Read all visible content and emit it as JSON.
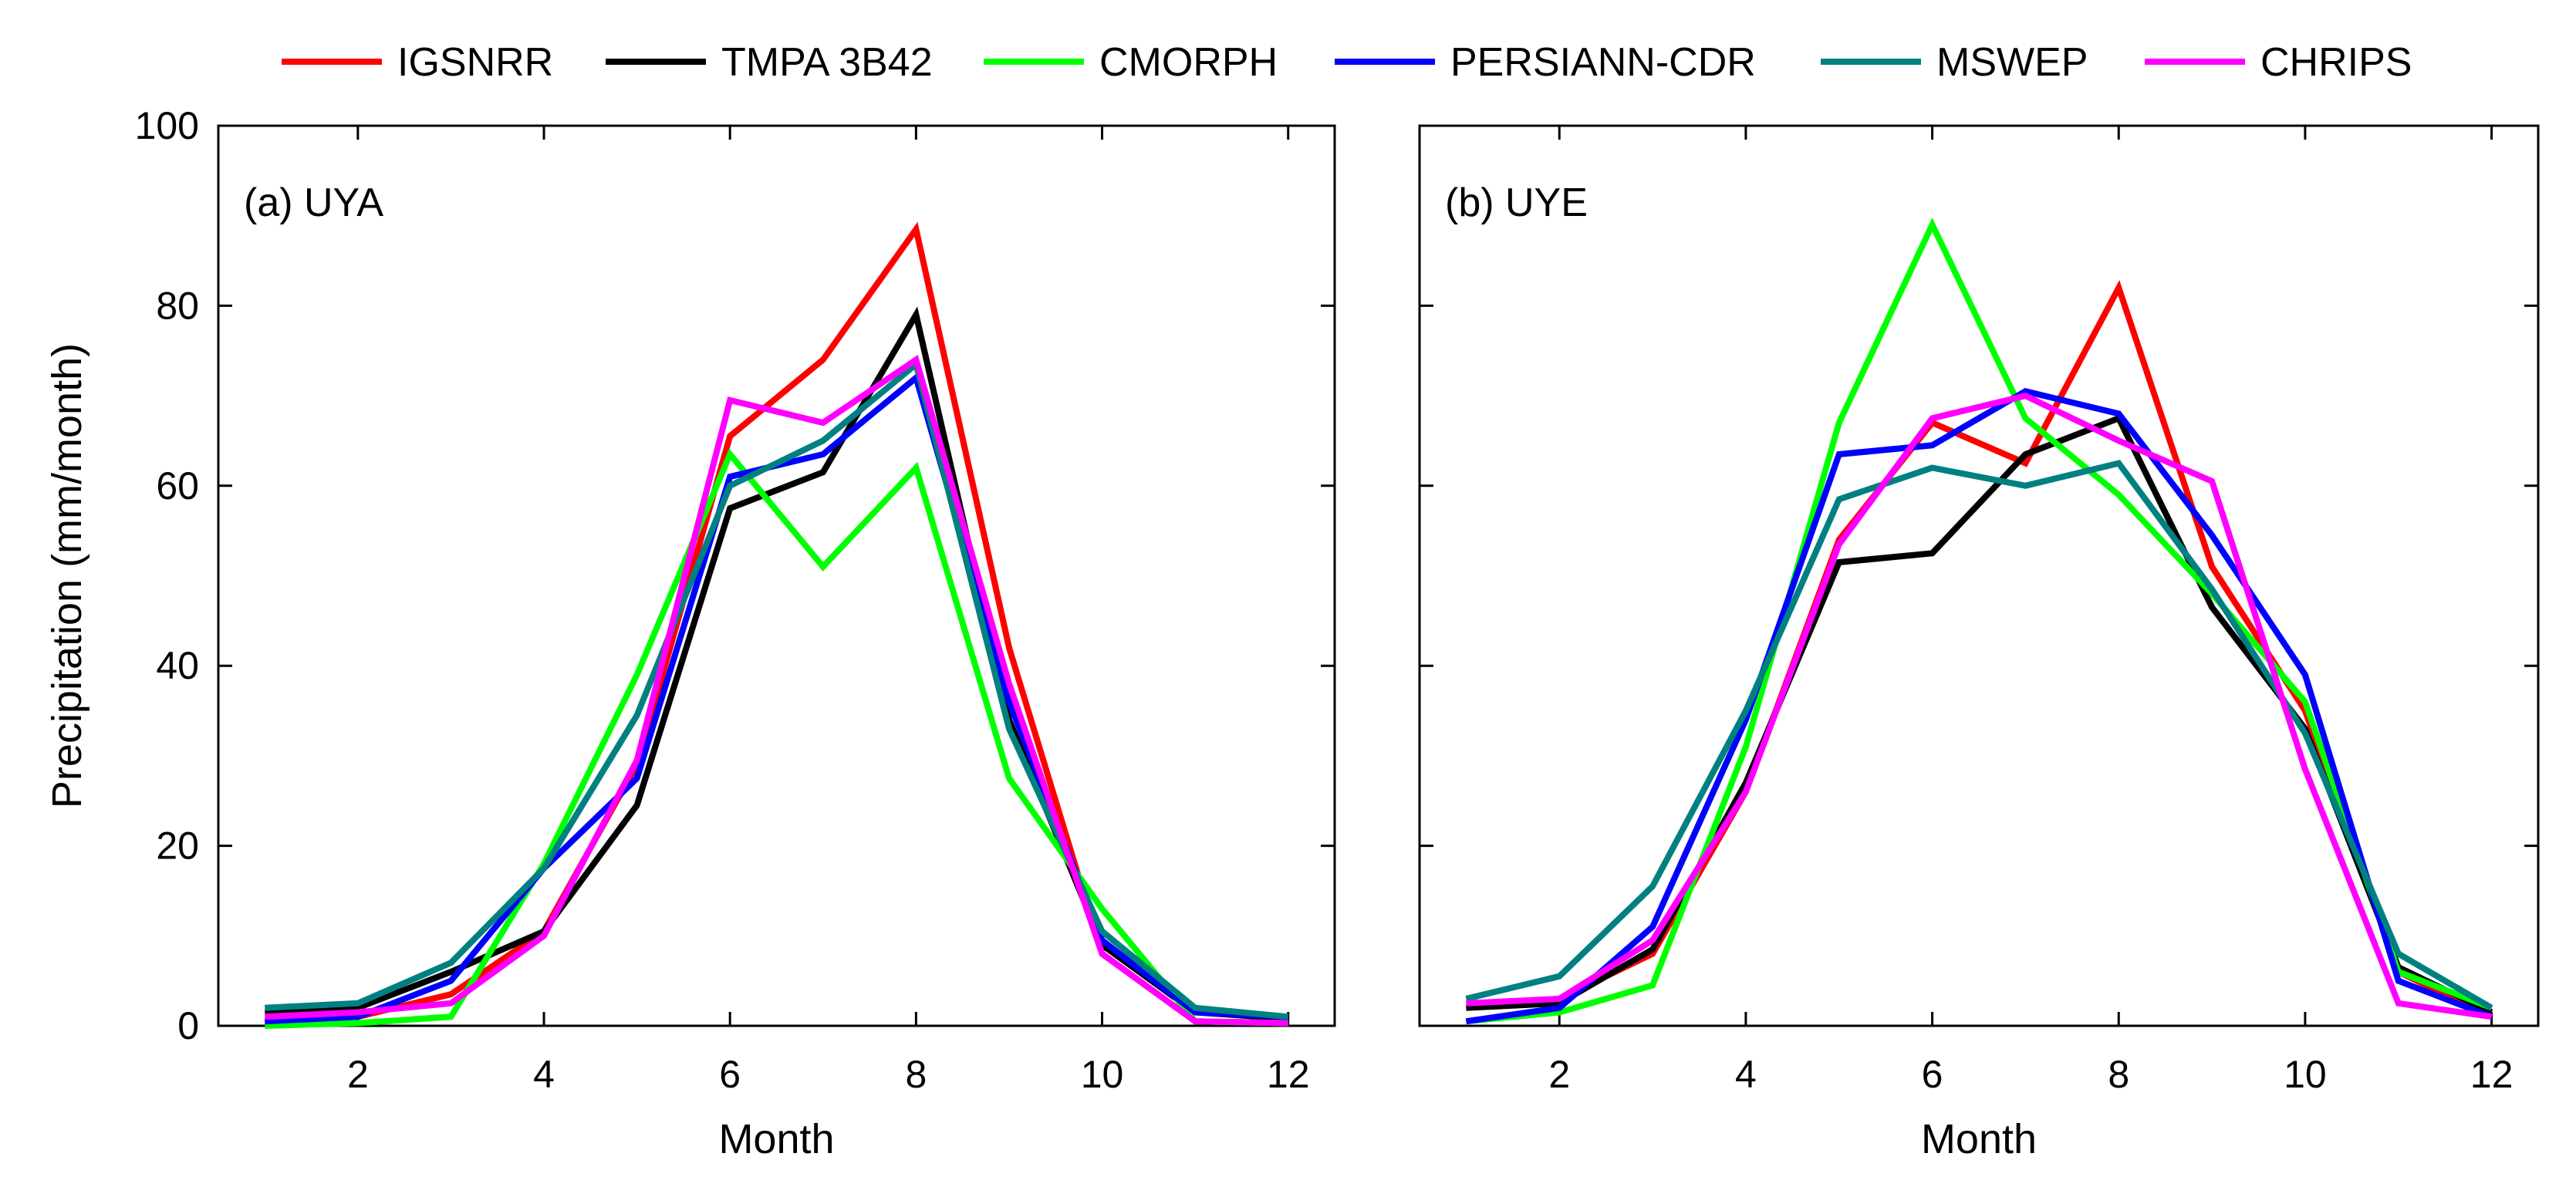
{
  "legend": {
    "items": [
      {
        "name": "IGSNRR",
        "color": "#ff0000"
      },
      {
        "name": "TMPA 3B42",
        "color": "#000000"
      },
      {
        "name": "CMORPH",
        "color": "#00ff00"
      },
      {
        "name": "PERSIANN-CDR",
        "color": "#0000ff"
      },
      {
        "name": "MSWEP",
        "color": "#008080"
      },
      {
        "name": "CHRIPS",
        "color": "#ff00ff"
      }
    ]
  },
  "chart_data": [
    {
      "type": "line",
      "title": "(a) UYA",
      "xlabel": "Month",
      "ylabel": "Precipitation (mm/month)",
      "xlim": [
        0.5,
        12.5
      ],
      "ylim": [
        0,
        100
      ],
      "x_ticks": [
        2,
        4,
        6,
        8,
        10,
        12
      ],
      "y_ticks": [
        0,
        20,
        40,
        60,
        80,
        100
      ],
      "show_y_tick_labels": true,
      "x": [
        1,
        2,
        3,
        4,
        5,
        6,
        7,
        8,
        9,
        10,
        11,
        12
      ],
      "series": [
        {
          "name": "IGSNRR",
          "color": "#ff0000",
          "values": [
            0.5,
            1.0,
            3.5,
            10.5,
            29.0,
            65.5,
            74.0,
            88.5,
            42.0,
            8.0,
            0.5,
            0.3
          ]
        },
        {
          "name": "TMPA 3B42",
          "color": "#000000",
          "values": [
            1.5,
            2.0,
            6.0,
            10.5,
            24.5,
            57.5,
            61.5,
            79.0,
            34.0,
            9.0,
            1.5,
            0.8
          ]
        },
        {
          "name": "CMORPH",
          "color": "#00ff00",
          "values": [
            0.0,
            0.3,
            1.0,
            18.0,
            39.0,
            63.5,
            51.0,
            62.0,
            27.5,
            13.0,
            0.5,
            0.3
          ]
        },
        {
          "name": "PERSIANN-CDR",
          "color": "#0000ff",
          "values": [
            0.5,
            1.0,
            5.0,
            17.5,
            27.5,
            61.0,
            63.5,
            72.0,
            36.0,
            9.5,
            1.5,
            1.0
          ]
        },
        {
          "name": "MSWEP",
          "color": "#008080",
          "values": [
            2.0,
            2.5,
            7.0,
            17.5,
            34.5,
            60.0,
            65.0,
            73.5,
            33.0,
            10.5,
            2.0,
            1.0
          ]
        },
        {
          "name": "CHRIPS",
          "color": "#ff00ff",
          "values": [
            1.0,
            1.5,
            2.5,
            10.0,
            29.5,
            69.5,
            67.0,
            74.0,
            38.0,
            8.0,
            0.5,
            0.3
          ]
        }
      ]
    },
    {
      "type": "line",
      "title": "(b) UYE",
      "xlabel": "Month",
      "ylabel": "",
      "xlim": [
        0.5,
        12.5
      ],
      "ylim": [
        0,
        100
      ],
      "x_ticks": [
        2,
        4,
        6,
        8,
        10,
        12
      ],
      "y_ticks": [
        0,
        20,
        40,
        60,
        80,
        100
      ],
      "show_y_tick_labels": false,
      "x": [
        1,
        2,
        3,
        4,
        5,
        6,
        7,
        8,
        9,
        10,
        11,
        12
      ],
      "series": [
        {
          "name": "IGSNRR",
          "color": "#ff0000",
          "values": [
            2.0,
            3.0,
            8.0,
            26.0,
            54.0,
            67.0,
            62.5,
            82.0,
            51.0,
            35.0,
            6.0,
            1.0
          ]
        },
        {
          "name": "TMPA 3B42",
          "color": "#000000",
          "values": [
            2.0,
            2.5,
            8.5,
            27.0,
            51.5,
            52.5,
            63.5,
            67.5,
            46.5,
            33.0,
            6.5,
            1.5
          ]
        },
        {
          "name": "CMORPH",
          "color": "#00ff00",
          "values": [
            0.5,
            1.5,
            4.5,
            31.0,
            67.0,
            89.0,
            67.5,
            59.0,
            48.0,
            36.0,
            6.0,
            2.0
          ]
        },
        {
          "name": "PERSIANN-CDR",
          "color": "#0000ff",
          "values": [
            0.5,
            2.0,
            11.0,
            34.0,
            63.5,
            64.5,
            70.5,
            68.0,
            54.5,
            39.0,
            5.0,
            1.0
          ]
        },
        {
          "name": "MSWEP",
          "color": "#008080",
          "values": [
            3.0,
            5.5,
            15.5,
            35.0,
            58.5,
            62.0,
            60.0,
            62.5,
            48.5,
            32.5,
            8.0,
            2.0
          ]
        },
        {
          "name": "CHRIPS",
          "color": "#ff00ff",
          "values": [
            2.5,
            3.0,
            9.5,
            26.0,
            53.5,
            67.5,
            70.0,
            65.0,
            60.5,
            28.5,
            2.5,
            1.0
          ]
        }
      ]
    }
  ]
}
